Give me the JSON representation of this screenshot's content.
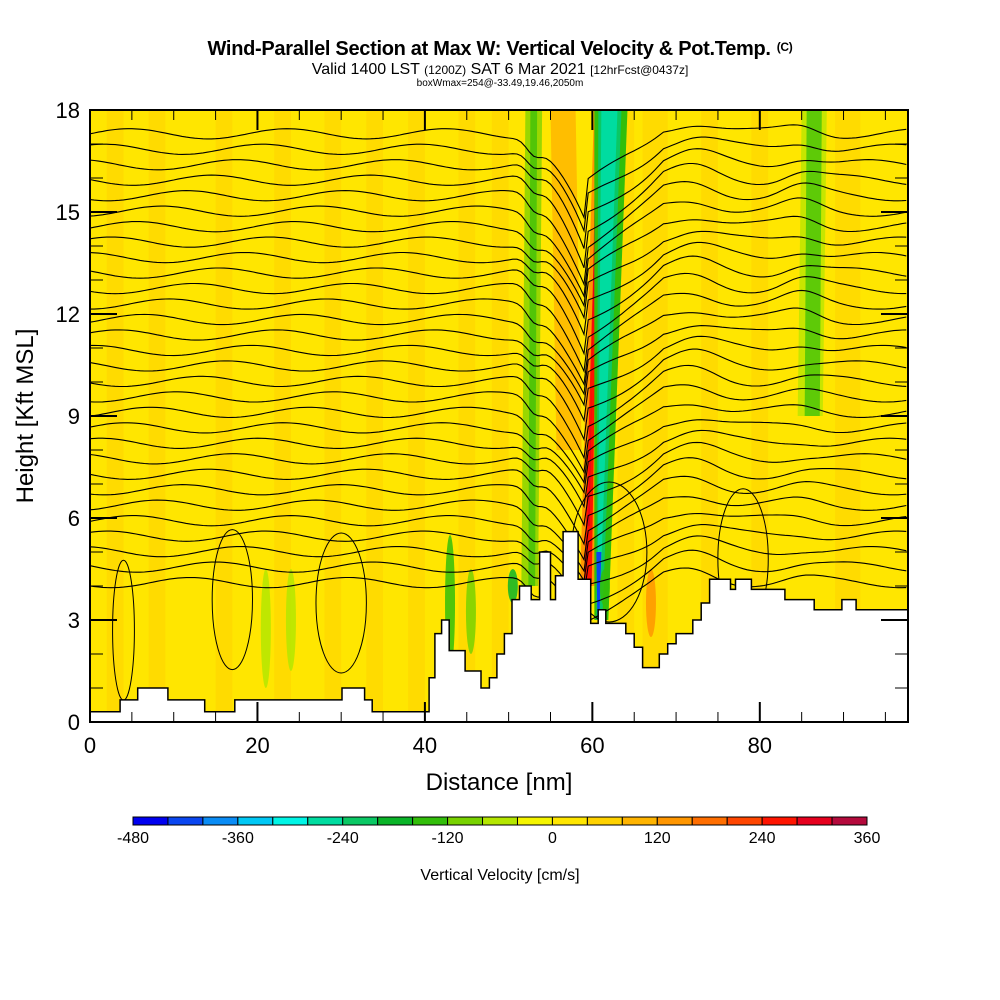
{
  "header": {
    "title": "Wind-Parallel Section at Max W: Vertical Velocity & Pot.Temp.",
    "copyright": "(C)",
    "valid_prefix": "Valid 1400 LST",
    "valid_utc": "(1200Z)",
    "valid_date": "SAT 6 Mar 2021",
    "forecast": "[12hrFcst@0437z]",
    "box_info": "boxWmax=254@-33.49,19.46,2050m"
  },
  "chart_data": {
    "type": "heatmap",
    "title": "Wind-Parallel Section at Max W: Vertical Velocity & Pot.Temp.",
    "xlabel": "Distance [nm]",
    "ylabel": "Height [Kft MSL]",
    "xlim": [
      0,
      97.7
    ],
    "ylim": [
      0,
      18
    ],
    "x_ticks": [
      0,
      20,
      40,
      60,
      80
    ],
    "x_tick_labels": [
      "0",
      "20",
      "40",
      "60",
      "80"
    ],
    "x_minor_step": 5,
    "y_ticks": [
      0,
      3,
      6,
      9,
      12,
      15,
      18
    ],
    "y_tick_labels": [
      "0",
      "3",
      "6",
      "9",
      "12",
      "15",
      "18"
    ],
    "y_minor_step": 1,
    "colorbar": {
      "title": "Vertical Velocity [cm/s]",
      "min": -480,
      "max": 360,
      "step": 40,
      "tick_values": [
        -480,
        -360,
        -240,
        -120,
        0,
        120,
        240,
        360
      ],
      "tick_labels": [
        "-480",
        "-360",
        "-240",
        "-120",
        "0",
        "120",
        "240",
        "360"
      ],
      "colors": [
        "#0000f0",
        "#0a46f0",
        "#0a8cf5",
        "#00c8f5",
        "#00f5e6",
        "#00dca0",
        "#0ac864",
        "#0ab428",
        "#32be0a",
        "#78d200",
        "#b4e600",
        "#f5f500",
        "#ffe600",
        "#ffd200",
        "#ffb400",
        "#ff9600",
        "#ff6e00",
        "#ff4600",
        "#ff1400",
        "#e6001e",
        "#b40a3c"
      ]
    },
    "background_bin_value": 20,
    "features": [
      {
        "kind": "updraft_column",
        "x_range": [
          59,
          61
        ],
        "y_range": [
          4,
          18
        ],
        "value": 254
      },
      {
        "kind": "downdraft_column",
        "x_range": [
          60,
          63
        ],
        "y_range": [
          3,
          18
        ],
        "value": -280
      },
      {
        "kind": "updraft_band",
        "x_range": [
          55,
          58
        ],
        "y_range": [
          8,
          18
        ],
        "value": 100
      },
      {
        "kind": "weak_downdraft",
        "x_range": [
          52,
          54
        ],
        "y_range": [
          4,
          18
        ],
        "value": -100
      },
      {
        "kind": "weak_downdraft",
        "x_range": [
          85,
          88
        ],
        "y_range": [
          9,
          18
        ],
        "value": -80
      }
    ],
    "terrain_kft": [
      [
        0,
        0.3
      ],
      [
        3.6,
        0.3
      ],
      [
        3.6,
        0.65
      ],
      [
        5.7,
        0.65
      ],
      [
        5.7,
        1.0
      ],
      [
        9.3,
        1.0
      ],
      [
        9.3,
        0.65
      ],
      [
        13.7,
        0.65
      ],
      [
        13.7,
        0.3
      ],
      [
        17.3,
        0.3
      ],
      [
        17.3,
        0.65
      ],
      [
        30.1,
        0.65
      ],
      [
        30.1,
        1.0
      ],
      [
        32.8,
        1.0
      ],
      [
        32.8,
        0.65
      ],
      [
        33.7,
        0.65
      ],
      [
        33.7,
        0.3
      ],
      [
        40.5,
        0.3
      ],
      [
        40.5,
        1.3
      ],
      [
        41.2,
        1.3
      ],
      [
        41.2,
        2.6
      ],
      [
        42.0,
        2.6
      ],
      [
        42.0,
        3.0
      ],
      [
        42.9,
        3.0
      ],
      [
        42.9,
        2.1
      ],
      [
        44.8,
        2.1
      ],
      [
        44.8,
        1.5
      ],
      [
        46.7,
        1.5
      ],
      [
        46.7,
        1.0
      ],
      [
        47.7,
        1.0
      ],
      [
        47.7,
        1.3
      ],
      [
        48.6,
        1.3
      ],
      [
        48.6,
        2.0
      ],
      [
        49.5,
        2.0
      ],
      [
        49.5,
        2.6
      ],
      [
        50.4,
        2.6
      ],
      [
        50.4,
        3.6
      ],
      [
        51.3,
        3.6
      ],
      [
        51.3,
        4.0
      ],
      [
        52.7,
        4.0
      ],
      [
        52.7,
        3.6
      ],
      [
        53.7,
        3.6
      ],
      [
        53.7,
        5.0
      ],
      [
        55.0,
        5.0
      ],
      [
        55.0,
        3.6
      ],
      [
        55.6,
        3.6
      ],
      [
        55.6,
        4.3
      ],
      [
        56.5,
        4.3
      ],
      [
        56.5,
        5.6
      ],
      [
        58.3,
        5.6
      ],
      [
        58.3,
        4.2
      ],
      [
        59.8,
        4.2
      ],
      [
        59.8,
        2.9
      ],
      [
        60.7,
        2.9
      ],
      [
        60.7,
        3.3
      ],
      [
        61.6,
        3.3
      ],
      [
        61.6,
        2.9
      ],
      [
        64.0,
        2.9
      ],
      [
        64.0,
        2.6
      ],
      [
        65.0,
        2.6
      ],
      [
        65.0,
        2.2
      ],
      [
        66.0,
        2.2
      ],
      [
        66.0,
        1.6
      ],
      [
        68.0,
        1.6
      ],
      [
        68.0,
        2.0
      ],
      [
        69.0,
        2.0
      ],
      [
        69.0,
        2.3
      ],
      [
        70.0,
        2.3
      ],
      [
        70.0,
        2.6
      ],
      [
        72.0,
        2.6
      ],
      [
        72.0,
        3.0
      ],
      [
        73.0,
        3.0
      ],
      [
        73.0,
        3.5
      ],
      [
        74.0,
        3.5
      ],
      [
        74.0,
        4.2
      ],
      [
        76.5,
        4.2
      ],
      [
        76.5,
        3.9
      ],
      [
        77.1,
        3.9
      ],
      [
        77.1,
        4.2
      ],
      [
        79.0,
        4.2
      ],
      [
        79.0,
        3.9
      ],
      [
        83.0,
        3.9
      ],
      [
        83.0,
        3.6
      ],
      [
        86.5,
        3.6
      ],
      [
        86.5,
        3.3
      ],
      [
        89.8,
        3.3
      ],
      [
        89.8,
        3.6
      ],
      [
        91.5,
        3.6
      ],
      [
        91.5,
        3.3
      ],
      [
        97.7,
        3.3
      ],
      [
        97.7,
        0
      ],
      [
        0,
        0
      ]
    ],
    "isentropes": {
      "label": "Potential temperature contours",
      "count": 30
    }
  }
}
